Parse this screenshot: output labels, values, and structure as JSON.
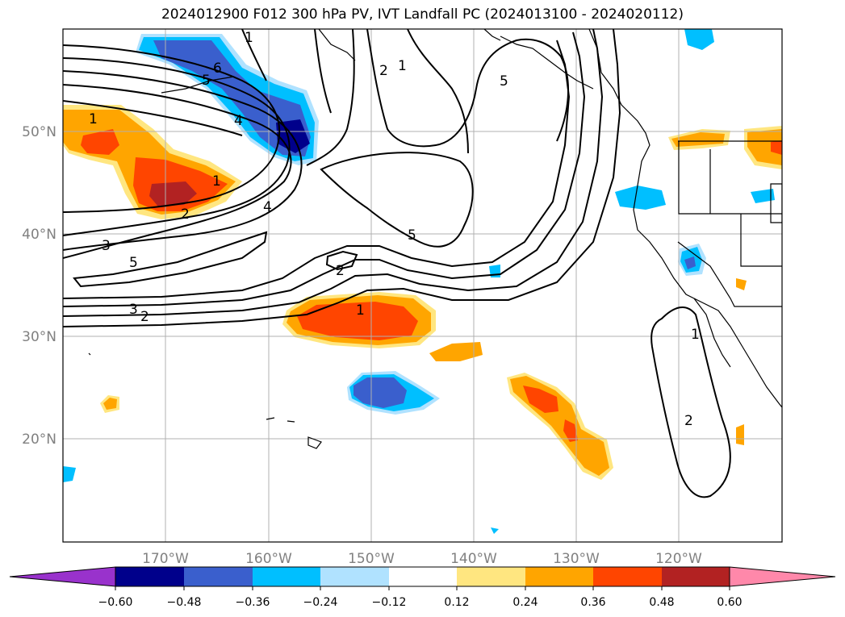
{
  "title": "2024012900 F012 300 hPa PV, IVT Landfall PC (2024013100 - 2024020112)",
  "map": {
    "projection": "PlateCarree",
    "extent_lon": [
      -180,
      -110
    ],
    "extent_lat": [
      10,
      60
    ],
    "grid": true,
    "coastlines": true,
    "state_borders": true
  },
  "lon_ticks": [
    "170°W",
    "160°W",
    "150°W",
    "140°W",
    "130°W",
    "120°W"
  ],
  "lat_ticks": [
    "50°N",
    "40°N",
    "30°N",
    "20°N"
  ],
  "pv_contour_labels": [
    "1",
    "6",
    "5",
    "4",
    "1",
    "2",
    "4",
    "3",
    "5",
    "1",
    "2",
    "3",
    "2",
    "1",
    "5",
    "2",
    "1",
    "5",
    "1",
    "2"
  ],
  "colorbar": {
    "ticks": [
      "−0.60",
      "−0.48",
      "−0.36",
      "−0.24",
      "−0.12",
      "0.12",
      "0.24",
      "0.36",
      "0.48",
      "0.60"
    ],
    "colors": [
      "#9932cc",
      "#00008b",
      "#3a5fcd",
      "#00bfff",
      "#b0e2ff",
      "#ffffff",
      "#ffe680",
      "#ffa500",
      "#ff4500",
      "#b22222",
      "#ff88aa"
    ],
    "extend": "both"
  }
}
